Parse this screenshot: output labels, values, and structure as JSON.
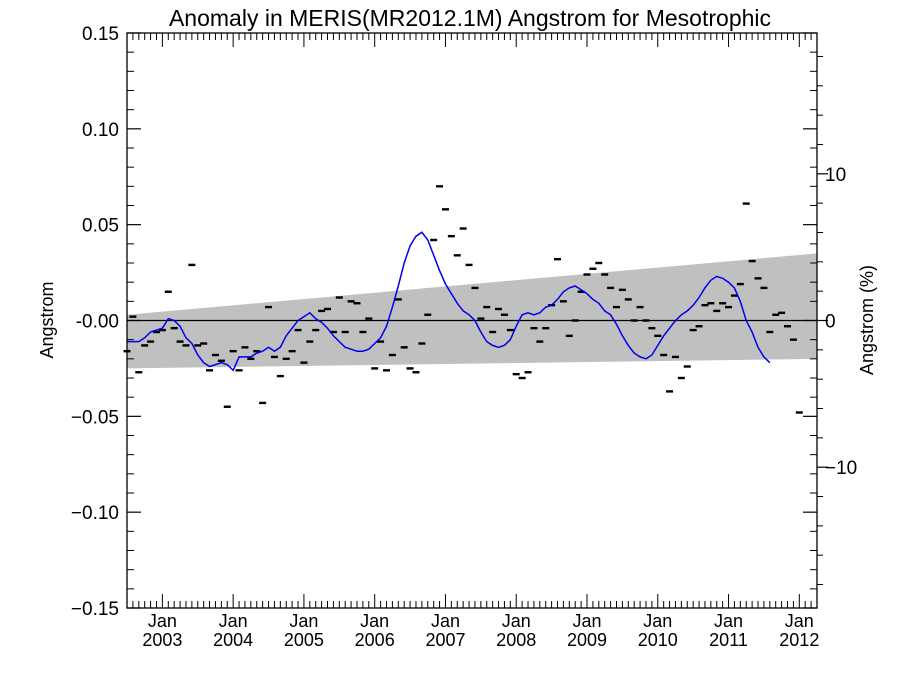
{
  "chart_data": {
    "type": "line",
    "title": "Anomaly in MERIS(MR2012.1M) Angstrom for Mesotrophic",
    "ylabel": "Angstrom",
    "y2label": "Angstrom (%)",
    "ylim": [
      -0.15,
      0.15
    ],
    "y2lim": [
      -19.6,
      19.6
    ],
    "xlim": [
      "2002-07",
      "2012-04"
    ],
    "yticks": [
      "0.15",
      "0.10",
      "0.05",
      "-0.00",
      "−0.05",
      "−0.10",
      "−0.15"
    ],
    "y2ticks": [
      "10",
      "0",
      "−10"
    ],
    "xticks": [
      {
        "month": "Jan",
        "year": "2003"
      },
      {
        "month": "Jan",
        "year": "2004"
      },
      {
        "month": "Jan",
        "year": "2005"
      },
      {
        "month": "Jan",
        "year": "2006"
      },
      {
        "month": "Jan",
        "year": "2007"
      },
      {
        "month": "Jan",
        "year": "2008"
      },
      {
        "month": "Jan",
        "year": "2009"
      },
      {
        "month": "Jan",
        "year": "2010"
      },
      {
        "month": "Jan",
        "year": "2011"
      },
      {
        "month": "Jan",
        "year": "2012"
      }
    ],
    "series": [
      {
        "kind": "monthly_anomaly_markers",
        "color": "#000000",
        "points": [
          [
            "2002-07",
            -0.016
          ],
          [
            "2002-08",
            0.002
          ],
          [
            "2002-09",
            -0.027
          ],
          [
            "2002-10",
            -0.013
          ],
          [
            "2002-11",
            -0.011
          ],
          [
            "2002-12",
            -0.006
          ],
          [
            "2003-01",
            -0.005
          ],
          [
            "2003-02",
            0.015
          ],
          [
            "2003-03",
            -0.004
          ],
          [
            "2003-04",
            -0.011
          ],
          [
            "2003-05",
            -0.013
          ],
          [
            "2003-06",
            0.029
          ],
          [
            "2003-07",
            -0.013
          ],
          [
            "2003-08",
            -0.012
          ],
          [
            "2003-09",
            -0.026
          ],
          [
            "2003-10",
            -0.018
          ],
          [
            "2003-11",
            -0.021
          ],
          [
            "2003-12",
            -0.045
          ],
          [
            "2004-01",
            -0.016
          ],
          [
            "2004-02",
            -0.026
          ],
          [
            "2004-03",
            -0.014
          ],
          [
            "2004-04",
            -0.02
          ],
          [
            "2004-05",
            -0.016
          ],
          [
            "2004-06",
            -0.043
          ],
          [
            "2004-07",
            0.007
          ],
          [
            "2004-08",
            -0.019
          ],
          [
            "2004-09",
            -0.029
          ],
          [
            "2004-10",
            -0.02
          ],
          [
            "2004-11",
            -0.016
          ],
          [
            "2004-12",
            -0.005
          ],
          [
            "2005-01",
            -0.022
          ],
          [
            "2005-02",
            -0.011
          ],
          [
            "2005-03",
            -0.005
          ],
          [
            "2005-04",
            0.005
          ],
          [
            "2005-05",
            0.006
          ],
          [
            "2005-06",
            -0.006
          ],
          [
            "2005-07",
            0.012
          ],
          [
            "2005-08",
            -0.006
          ],
          [
            "2005-09",
            0.01
          ],
          [
            "2005-10",
            0.009
          ],
          [
            "2005-11",
            -0.006
          ],
          [
            "2005-12",
            0.001
          ],
          [
            "2006-01",
            -0.025
          ],
          [
            "2006-02",
            -0.011
          ],
          [
            "2006-03",
            -0.026
          ],
          [
            "2006-04",
            -0.018
          ],
          [
            "2006-05",
            0.011
          ],
          [
            "2006-06",
            -0.014
          ],
          [
            "2006-07",
            -0.025
          ],
          [
            "2006-08",
            -0.027
          ],
          [
            "2006-09",
            -0.012
          ],
          [
            "2006-10",
            0.003
          ],
          [
            "2006-11",
            0.042
          ],
          [
            "2006-12",
            0.07
          ],
          [
            "2007-01",
            0.058
          ],
          [
            "2007-02",
            0.044
          ],
          [
            "2007-03",
            0.034
          ],
          [
            "2007-04",
            0.048
          ],
          [
            "2007-05",
            0.029
          ],
          [
            "2007-06",
            0.017
          ],
          [
            "2007-07",
            0.001
          ],
          [
            "2007-08",
            0.007
          ],
          [
            "2007-09",
            -0.006
          ],
          [
            "2007-10",
            0.006
          ],
          [
            "2007-11",
            0.003
          ],
          [
            "2007-12",
            -0.005
          ],
          [
            "2008-01",
            -0.028
          ],
          [
            "2008-02",
            -0.03
          ],
          [
            "2008-03",
            -0.027
          ],
          [
            "2008-04",
            -0.004
          ],
          [
            "2008-05",
            -0.011
          ],
          [
            "2008-06",
            -0.004
          ],
          [
            "2008-07",
            0.008
          ],
          [
            "2008-08",
            0.032
          ],
          [
            "2008-09",
            0.01
          ],
          [
            "2008-10",
            -0.008
          ],
          [
            "2008-11",
            0.0
          ],
          [
            "2008-12",
            0.015
          ],
          [
            "2009-01",
            0.024
          ],
          [
            "2009-02",
            0.027
          ],
          [
            "2009-03",
            0.03
          ],
          [
            "2009-04",
            0.024
          ],
          [
            "2009-05",
            0.017
          ],
          [
            "2009-06",
            0.007
          ],
          [
            "2009-07",
            0.016
          ],
          [
            "2009-08",
            0.011
          ],
          [
            "2009-09",
            0.0
          ],
          [
            "2009-10",
            0.007
          ],
          [
            "2009-11",
            0.0
          ],
          [
            "2009-12",
            -0.004
          ],
          [
            "2010-01",
            -0.008
          ],
          [
            "2010-02",
            -0.018
          ],
          [
            "2010-03",
            -0.037
          ],
          [
            "2010-04",
            -0.019
          ],
          [
            "2010-05",
            -0.03
          ],
          [
            "2010-06",
            -0.024
          ],
          [
            "2010-07",
            -0.005
          ],
          [
            "2010-08",
            -0.003
          ],
          [
            "2010-09",
            0.008
          ],
          [
            "2010-10",
            0.009
          ],
          [
            "2010-11",
            0.005
          ],
          [
            "2010-12",
            0.009
          ],
          [
            "2011-01",
            0.007
          ],
          [
            "2011-02",
            0.013
          ],
          [
            "2011-03",
            0.019
          ],
          [
            "2011-04",
            0.061
          ],
          [
            "2011-05",
            0.031
          ],
          [
            "2011-06",
            0.022
          ],
          [
            "2011-07",
            0.017
          ],
          [
            "2011-08",
            -0.006
          ],
          [
            "2011-09",
            0.003
          ],
          [
            "2011-10",
            0.004
          ],
          [
            "2011-11",
            -0.003
          ],
          [
            "2011-12",
            -0.01
          ],
          [
            "2012-01",
            -0.048
          ]
        ]
      },
      {
        "kind": "smoothed_line",
        "color": "#0000ee",
        "points": [
          [
            "2002-07",
            -0.011
          ],
          [
            "2002-08",
            -0.011
          ],
          [
            "2002-09",
            -0.011
          ],
          [
            "2002-10",
            -0.009
          ],
          [
            "2002-11",
            -0.006
          ],
          [
            "2002-12",
            -0.005
          ],
          [
            "2003-01",
            -0.004
          ],
          [
            "2003-02",
            0.001
          ],
          [
            "2003-03",
            0.0
          ],
          [
            "2003-04",
            -0.003
          ],
          [
            "2003-05",
            -0.009
          ],
          [
            "2003-06",
            -0.012
          ],
          [
            "2003-07",
            -0.018
          ],
          [
            "2003-08",
            -0.022
          ],
          [
            "2003-09",
            -0.024
          ],
          [
            "2003-10",
            -0.023
          ],
          [
            "2003-11",
            -0.022
          ],
          [
            "2003-12",
            -0.023
          ],
          [
            "2004-01",
            -0.026
          ],
          [
            "2004-02",
            -0.019
          ],
          [
            "2004-03",
            -0.019
          ],
          [
            "2004-04",
            -0.019
          ],
          [
            "2004-05",
            -0.017
          ],
          [
            "2004-06",
            -0.016
          ],
          [
            "2004-07",
            -0.014
          ],
          [
            "2004-08",
            -0.016
          ],
          [
            "2004-09",
            -0.014
          ],
          [
            "2004-10",
            -0.008
          ],
          [
            "2004-11",
            -0.004
          ],
          [
            "2004-12",
            0.0
          ],
          [
            "2005-01",
            0.002
          ],
          [
            "2005-02",
            0.004
          ],
          [
            "2005-03",
            0.001
          ],
          [
            "2005-04",
            -0.001
          ],
          [
            "2005-05",
            -0.004
          ],
          [
            "2005-06",
            -0.008
          ],
          [
            "2005-07",
            -0.011
          ],
          [
            "2005-08",
            -0.014
          ],
          [
            "2005-09",
            -0.015
          ],
          [
            "2005-10",
            -0.016
          ],
          [
            "2005-11",
            -0.016
          ],
          [
            "2005-12",
            -0.015
          ],
          [
            "2006-01",
            -0.012
          ],
          [
            "2006-02",
            -0.009
          ],
          [
            "2006-03",
            -0.003
          ],
          [
            "2006-04",
            0.007
          ],
          [
            "2006-05",
            0.018
          ],
          [
            "2006-06",
            0.03
          ],
          [
            "2006-07",
            0.039
          ],
          [
            "2006-08",
            0.044
          ],
          [
            "2006-09",
            0.046
          ],
          [
            "2006-10",
            0.042
          ],
          [
            "2006-11",
            0.034
          ],
          [
            "2006-12",
            0.026
          ],
          [
            "2007-01",
            0.019
          ],
          [
            "2007-02",
            0.014
          ],
          [
            "2007-03",
            0.009
          ],
          [
            "2007-04",
            0.005
          ],
          [
            "2007-05",
            0.003
          ],
          [
            "2007-06",
            0.0
          ],
          [
            "2007-07",
            -0.006
          ],
          [
            "2007-08",
            -0.011
          ],
          [
            "2007-09",
            -0.013
          ],
          [
            "2007-10",
            -0.014
          ],
          [
            "2007-11",
            -0.013
          ],
          [
            "2007-12",
            -0.01
          ],
          [
            "2008-01",
            -0.003
          ],
          [
            "2008-02",
            0.003
          ],
          [
            "2008-03",
            0.004
          ],
          [
            "2008-04",
            0.003
          ],
          [
            "2008-05",
            0.004
          ],
          [
            "2008-06",
            0.007
          ],
          [
            "2008-07",
            0.008
          ],
          [
            "2008-08",
            0.011
          ],
          [
            "2008-09",
            0.015
          ],
          [
            "2008-10",
            0.017
          ],
          [
            "2008-11",
            0.018
          ],
          [
            "2008-12",
            0.016
          ],
          [
            "2009-01",
            0.014
          ],
          [
            "2009-02",
            0.011
          ],
          [
            "2009-03",
            0.009
          ],
          [
            "2009-04",
            0.005
          ],
          [
            "2009-05",
            0.003
          ],
          [
            "2009-06",
            -0.002
          ],
          [
            "2009-07",
            -0.008
          ],
          [
            "2009-08",
            -0.013
          ],
          [
            "2009-09",
            -0.017
          ],
          [
            "2009-10",
            -0.019
          ],
          [
            "2009-11",
            -0.02
          ],
          [
            "2009-12",
            -0.018
          ],
          [
            "2010-01",
            -0.013
          ],
          [
            "2010-02",
            -0.008
          ],
          [
            "2010-03",
            -0.004
          ],
          [
            "2010-04",
            0.0
          ],
          [
            "2010-05",
            0.003
          ],
          [
            "2010-06",
            0.005
          ],
          [
            "2010-07",
            0.008
          ],
          [
            "2010-08",
            0.012
          ],
          [
            "2010-09",
            0.017
          ],
          [
            "2010-10",
            0.021
          ],
          [
            "2010-11",
            0.023
          ],
          [
            "2010-12",
            0.022
          ],
          [
            "2011-01",
            0.02
          ],
          [
            "2011-02",
            0.017
          ],
          [
            "2011-03",
            0.01
          ],
          [
            "2011-04",
            0.0
          ],
          [
            "2011-05",
            -0.006
          ],
          [
            "2011-06",
            -0.014
          ],
          [
            "2011-07",
            -0.019
          ],
          [
            "2011-08",
            -0.022
          ]
        ]
      },
      {
        "kind": "trend_band",
        "color": "#c0c0c0",
        "upper": [
          [
            "2002-07",
            0.003
          ],
          [
            "2012-04",
            0.035
          ]
        ],
        "lower": [
          [
            "2002-07",
            -0.025
          ],
          [
            "2012-04",
            -0.02
          ]
        ]
      }
    ],
    "zero_line": 0
  }
}
